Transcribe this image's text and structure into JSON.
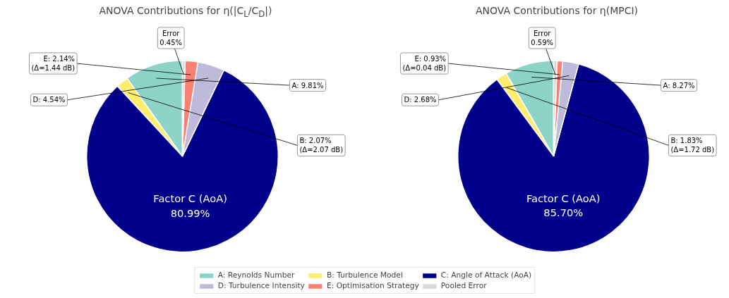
{
  "chart_data": [
    {
      "type": "pie",
      "title": "ANOVA Contributions for η(|C$_{L}$/C$_{D}$|)",
      "categories": [
        "A: Reynolds Number",
        "B: Turbulence Model",
        "C: Angle of Attack (AoA)",
        "D: Turbulence Intensity",
        "E: Optimisation Strategy",
        "Pooled Error"
      ],
      "values": [
        9.81,
        2.07,
        80.99,
        4.54,
        2.14,
        0.45
      ],
      "colors": [
        "#8dd3c7",
        "#ffed6f",
        "#00008b",
        "#bebada",
        "#fb8072",
        "#d9d9d9"
      ],
      "value_labels": [
        "A: 9.81%",
        "B: 2.07%\n(Δ=2.07 dB)",
        "Factor C (AoA)\n80.99%",
        "D: 4.54%",
        "E: 2.14%\n(Δ=1.44 dB)",
        "Error\n0.45%"
      ],
      "legend": "bottom"
    },
    {
      "type": "pie",
      "title": "ANOVA Contributions for η(MPCI)",
      "categories": [
        null,
        null,
        null,
        null,
        null,
        null
      ],
      "values": [
        8.27,
        1.83,
        85.7,
        2.68,
        0.93,
        0.59
      ],
      "colors": [
        "#8dd3c7",
        "#ffed6f",
        "#00008b",
        "#bebada",
        "#fb8072",
        "#d9d9d9"
      ],
      "value_labels": [
        "A: 8.27%",
        "B: 1.83%\n(Δ=1.72 dB)",
        "Factor C (AoA)\n85.70%",
        "D: 2.68%",
        "E: 0.93%\n(Δ=0.04 dB)",
        "Error\n0.59%"
      ]
    }
  ]
}
